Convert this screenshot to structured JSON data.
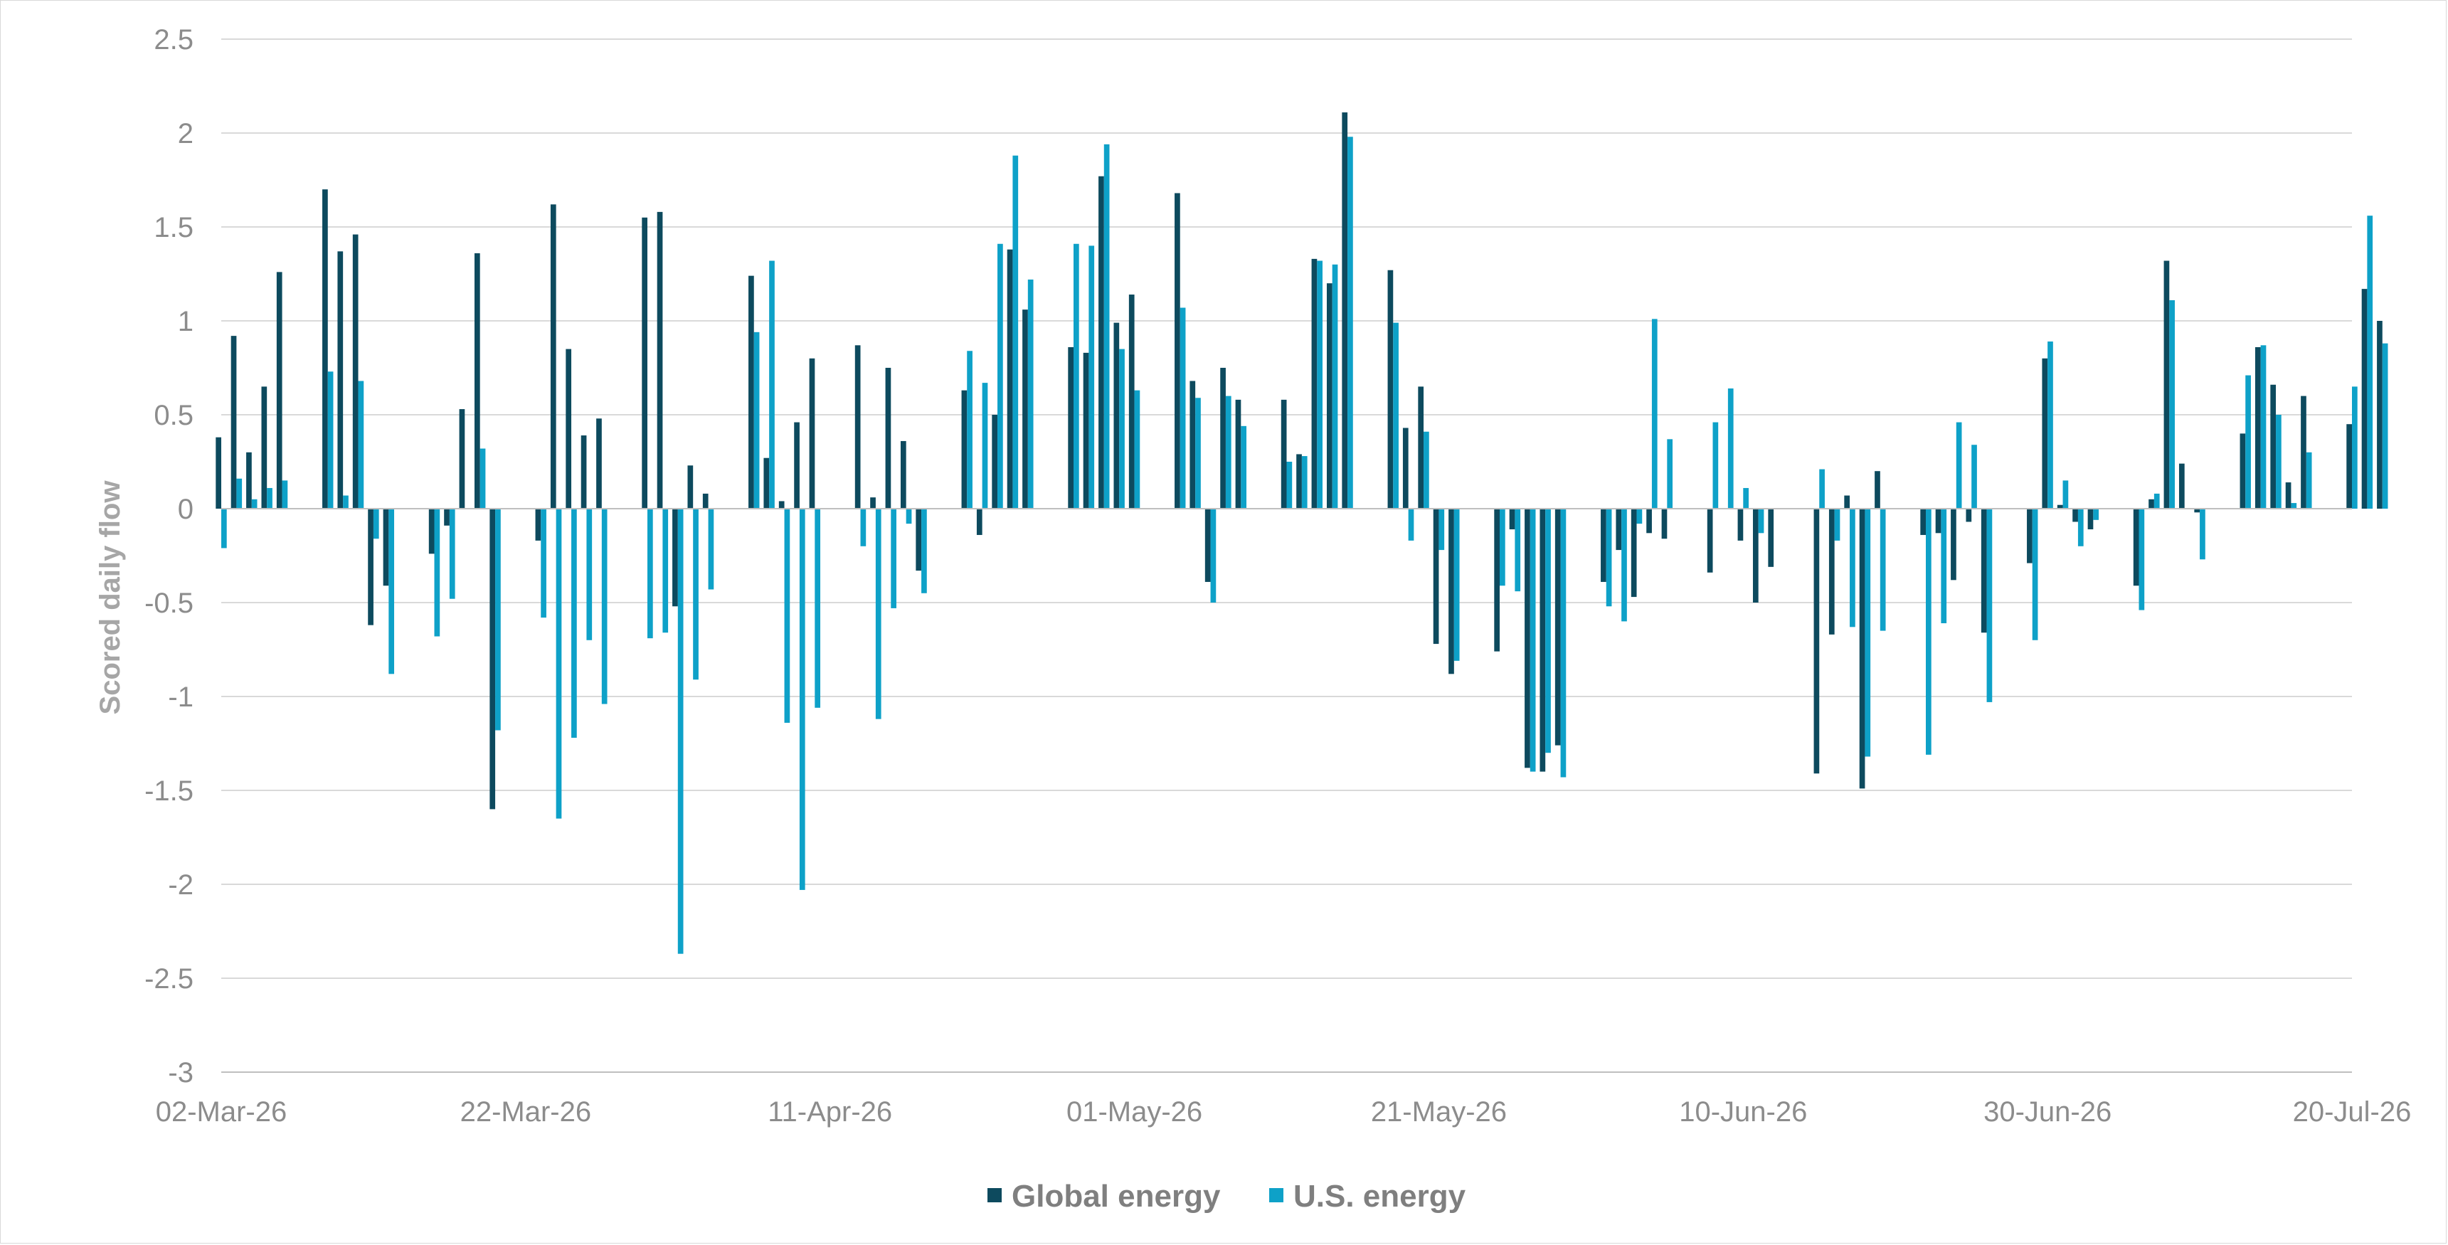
{
  "chart_data": {
    "type": "bar",
    "ylabel": "Scored daily flow",
    "xlabel": "",
    "ylim": [
      -3,
      2.5
    ],
    "y_ticks": [
      "2.5",
      "2",
      "1.5",
      "1",
      "0.5",
      "0",
      "-0.5",
      "-1",
      "-1.5",
      "-2",
      "-2.5",
      "-3"
    ],
    "x_tick_labels": [
      "02-Mar-26",
      "22-Mar-26",
      "11-Apr-26",
      "01-May-26",
      "21-May-26",
      "10-Jun-26",
      "30-Jun-26",
      "20-Jul-26"
    ],
    "x_start": "2026-03-02",
    "x_end": "2026-07-20",
    "grid": true,
    "legend_position": "bottom",
    "colors": {
      "Global energy": "#0d4a5e",
      "U.S. energy": "#0ea1c8",
      "grid": "#d9d9d9",
      "axis": "#bfbfbf"
    },
    "series": [
      {
        "name": "Global energy",
        "values": [
          [
            "2026-03-02",
            0.38
          ],
          [
            "2026-03-03",
            0.92
          ],
          [
            "2026-03-04",
            0.3
          ],
          [
            "2026-03-05",
            0.65
          ],
          [
            "2026-03-06",
            1.26
          ],
          [
            "2026-03-09",
            1.7
          ],
          [
            "2026-03-10",
            1.37
          ],
          [
            "2026-03-11",
            1.46
          ],
          [
            "2026-03-12",
            -0.62
          ],
          [
            "2026-03-13",
            -0.41
          ],
          [
            "2026-03-16",
            -0.24
          ],
          [
            "2026-03-17",
            -0.09
          ],
          [
            "2026-03-18",
            0.53
          ],
          [
            "2026-03-19",
            1.36
          ],
          [
            "2026-03-20",
            -1.6
          ],
          [
            "2026-03-23",
            -0.17
          ],
          [
            "2026-03-24",
            1.62
          ],
          [
            "2026-03-25",
            0.85
          ],
          [
            "2026-03-26",
            0.39
          ],
          [
            "2026-03-27",
            0.48
          ],
          [
            "2026-03-30",
            1.55
          ],
          [
            "2026-03-31",
            1.58
          ],
          [
            "2026-04-01",
            -0.52
          ],
          [
            "2026-04-02",
            0.23
          ],
          [
            "2026-04-03",
            0.08
          ],
          [
            "2026-04-06",
            1.24
          ],
          [
            "2026-04-07",
            0.27
          ],
          [
            "2026-04-08",
            0.04
          ],
          [
            "2026-04-09",
            0.46
          ],
          [
            "2026-04-10",
            0.8
          ],
          [
            "2026-04-13",
            0.87
          ],
          [
            "2026-04-14",
            0.06
          ],
          [
            "2026-04-15",
            0.75
          ],
          [
            "2026-04-16",
            0.36
          ],
          [
            "2026-04-17",
            -0.33
          ],
          [
            "2026-04-20",
            0.63
          ],
          [
            "2026-04-21",
            -0.14
          ],
          [
            "2026-04-22",
            0.5
          ],
          [
            "2026-04-23",
            1.38
          ],
          [
            "2026-04-24",
            1.06
          ],
          [
            "2026-04-27",
            0.86
          ],
          [
            "2026-04-28",
            0.83
          ],
          [
            "2026-04-29",
            1.77
          ],
          [
            "2026-04-30",
            0.99
          ],
          [
            "2026-05-01",
            1.14
          ],
          [
            "2026-05-04",
            1.68
          ],
          [
            "2026-05-05",
            0.68
          ],
          [
            "2026-05-06",
            -0.39
          ],
          [
            "2026-05-07",
            0.75
          ],
          [
            "2026-05-08",
            0.58
          ],
          [
            "2026-05-11",
            0.58
          ],
          [
            "2026-05-12",
            0.29
          ],
          [
            "2026-05-13",
            1.33
          ],
          [
            "2026-05-14",
            1.2
          ],
          [
            "2026-05-15",
            2.11
          ],
          [
            "2026-05-18",
            1.27
          ],
          [
            "2026-05-19",
            0.43
          ],
          [
            "2026-05-20",
            0.65
          ],
          [
            "2026-05-21",
            -0.72
          ],
          [
            "2026-05-22",
            -0.88
          ],
          [
            "2026-05-25",
            -0.76
          ],
          [
            "2026-05-26",
            -0.11
          ],
          [
            "2026-05-27",
            -1.38
          ],
          [
            "2026-05-28",
            -1.4
          ],
          [
            "2026-05-29",
            -1.26
          ],
          [
            "2026-06-01",
            -0.39
          ],
          [
            "2026-06-02",
            -0.22
          ],
          [
            "2026-06-03",
            -0.47
          ],
          [
            "2026-06-04",
            -0.13
          ],
          [
            "2026-06-05",
            -0.16
          ],
          [
            "2026-06-08",
            -0.34
          ],
          [
            "2026-06-10",
            -0.17
          ],
          [
            "2026-06-11",
            -0.5
          ],
          [
            "2026-06-12",
            -0.31
          ],
          [
            "2026-06-15",
            -1.41
          ],
          [
            "2026-06-16",
            -0.67
          ],
          [
            "2026-06-17",
            0.07
          ],
          [
            "2026-06-18",
            -1.49
          ],
          [
            "2026-06-19",
            0.2
          ],
          [
            "2026-06-22",
            -0.14
          ],
          [
            "2026-06-23",
            -0.13
          ],
          [
            "2026-06-24",
            -0.38
          ],
          [
            "2026-06-25",
            -0.07
          ],
          [
            "2026-06-26",
            -0.66
          ],
          [
            "2026-06-29",
            -0.29
          ],
          [
            "2026-06-30",
            0.8
          ],
          [
            "2026-07-01",
            0.02
          ],
          [
            "2026-07-02",
            -0.07
          ],
          [
            "2026-07-03",
            -0.11
          ],
          [
            "2026-07-06",
            -0.41
          ],
          [
            "2026-07-07",
            0.05
          ],
          [
            "2026-07-08",
            1.32
          ],
          [
            "2026-07-09",
            0.24
          ],
          [
            "2026-07-10",
            -0.02
          ],
          [
            "2026-07-13",
            0.4
          ],
          [
            "2026-07-14",
            0.86
          ],
          [
            "2026-07-15",
            0.66
          ],
          [
            "2026-07-16",
            0.14
          ],
          [
            "2026-07-17",
            0.6
          ],
          [
            "2026-07-20",
            0.45
          ],
          [
            "2026-07-21",
            1.17
          ],
          [
            "2026-07-22",
            1.0
          ]
        ]
      },
      {
        "name": "U.S. energy",
        "values": [
          [
            "2026-03-02",
            -0.21
          ],
          [
            "2026-03-03",
            0.16
          ],
          [
            "2026-03-04",
            0.05
          ],
          [
            "2026-03-05",
            0.11
          ],
          [
            "2026-03-06",
            0.15
          ],
          [
            "2026-03-09",
            0.73
          ],
          [
            "2026-03-10",
            0.07
          ],
          [
            "2026-03-11",
            0.68
          ],
          [
            "2026-03-12",
            -0.16
          ],
          [
            "2026-03-13",
            -0.88
          ],
          [
            "2026-03-16",
            -0.68
          ],
          [
            "2026-03-17",
            -0.48
          ],
          [
            "2026-03-18",
            0.0
          ],
          [
            "2026-03-19",
            0.32
          ],
          [
            "2026-03-20",
            -1.18
          ],
          [
            "2026-03-23",
            -0.58
          ],
          [
            "2026-03-24",
            -1.65
          ],
          [
            "2026-03-25",
            -1.22
          ],
          [
            "2026-03-26",
            -0.7
          ],
          [
            "2026-03-27",
            -1.04
          ],
          [
            "2026-03-30",
            -0.69
          ],
          [
            "2026-03-31",
            -0.66
          ],
          [
            "2026-04-01",
            -2.37
          ],
          [
            "2026-04-02",
            -0.91
          ],
          [
            "2026-04-03",
            -0.43
          ],
          [
            "2026-04-06",
            0.94
          ],
          [
            "2026-04-07",
            1.32
          ],
          [
            "2026-04-08",
            -1.14
          ],
          [
            "2026-04-09",
            -2.03
          ],
          [
            "2026-04-10",
            -1.06
          ],
          [
            "2026-04-13",
            -0.2
          ],
          [
            "2026-04-14",
            -1.12
          ],
          [
            "2026-04-15",
            -0.53
          ],
          [
            "2026-04-16",
            -0.08
          ],
          [
            "2026-04-17",
            -0.45
          ],
          [
            "2026-04-20",
            0.84
          ],
          [
            "2026-04-21",
            0.67
          ],
          [
            "2026-04-22",
            1.41
          ],
          [
            "2026-04-23",
            1.88
          ],
          [
            "2026-04-24",
            1.22
          ],
          [
            "2026-04-27",
            1.41
          ],
          [
            "2026-04-28",
            1.4
          ],
          [
            "2026-04-29",
            1.94
          ],
          [
            "2026-04-30",
            0.85
          ],
          [
            "2026-05-01",
            0.63
          ],
          [
            "2026-05-04",
            1.07
          ],
          [
            "2026-05-05",
            0.59
          ],
          [
            "2026-05-06",
            -0.5
          ],
          [
            "2026-05-07",
            0.6
          ],
          [
            "2026-05-08",
            0.44
          ],
          [
            "2026-05-11",
            0.25
          ],
          [
            "2026-05-12",
            0.28
          ],
          [
            "2026-05-13",
            1.32
          ],
          [
            "2026-05-14",
            1.3
          ],
          [
            "2026-05-15",
            1.98
          ],
          [
            "2026-05-18",
            0.99
          ],
          [
            "2026-05-19",
            -0.17
          ],
          [
            "2026-05-20",
            0.41
          ],
          [
            "2026-05-21",
            -0.22
          ],
          [
            "2026-05-22",
            -0.81
          ],
          [
            "2026-05-25",
            -0.41
          ],
          [
            "2026-05-26",
            -0.44
          ],
          [
            "2026-05-27",
            -1.4
          ],
          [
            "2026-05-28",
            -1.3
          ],
          [
            "2026-05-29",
            -1.43
          ],
          [
            "2026-06-01",
            -0.52
          ],
          [
            "2026-06-02",
            -0.6
          ],
          [
            "2026-06-03",
            -0.08
          ],
          [
            "2026-06-04",
            1.01
          ],
          [
            "2026-06-05",
            0.37
          ],
          [
            "2026-06-08",
            0.46
          ],
          [
            "2026-06-09",
            0.64
          ],
          [
            "2026-06-10",
            0.11
          ],
          [
            "2026-06-11",
            -0.13
          ],
          [
            "2026-06-15",
            0.21
          ],
          [
            "2026-06-16",
            -0.17
          ],
          [
            "2026-06-17",
            -0.63
          ],
          [
            "2026-06-18",
            -1.32
          ],
          [
            "2026-06-19",
            -0.65
          ],
          [
            "2026-06-22",
            -1.31
          ],
          [
            "2026-06-23",
            -0.61
          ],
          [
            "2026-06-24",
            0.46
          ],
          [
            "2026-06-25",
            0.34
          ],
          [
            "2026-06-26",
            -1.03
          ],
          [
            "2026-06-29",
            -0.7
          ],
          [
            "2026-06-30",
            0.89
          ],
          [
            "2026-07-01",
            0.15
          ],
          [
            "2026-07-02",
            -0.2
          ],
          [
            "2026-07-03",
            -0.06
          ],
          [
            "2026-07-06",
            -0.54
          ],
          [
            "2026-07-07",
            0.08
          ],
          [
            "2026-07-08",
            1.11
          ],
          [
            "2026-07-09",
            0.0
          ],
          [
            "2026-07-10",
            -0.27
          ],
          [
            "2026-07-13",
            0.71
          ],
          [
            "2026-07-14",
            0.87
          ],
          [
            "2026-07-15",
            0.5
          ],
          [
            "2026-07-16",
            0.03
          ],
          [
            "2026-07-17",
            0.3
          ],
          [
            "2026-07-20",
            0.65
          ],
          [
            "2026-07-21",
            1.56
          ],
          [
            "2026-07-22",
            0.88
          ]
        ]
      }
    ]
  }
}
